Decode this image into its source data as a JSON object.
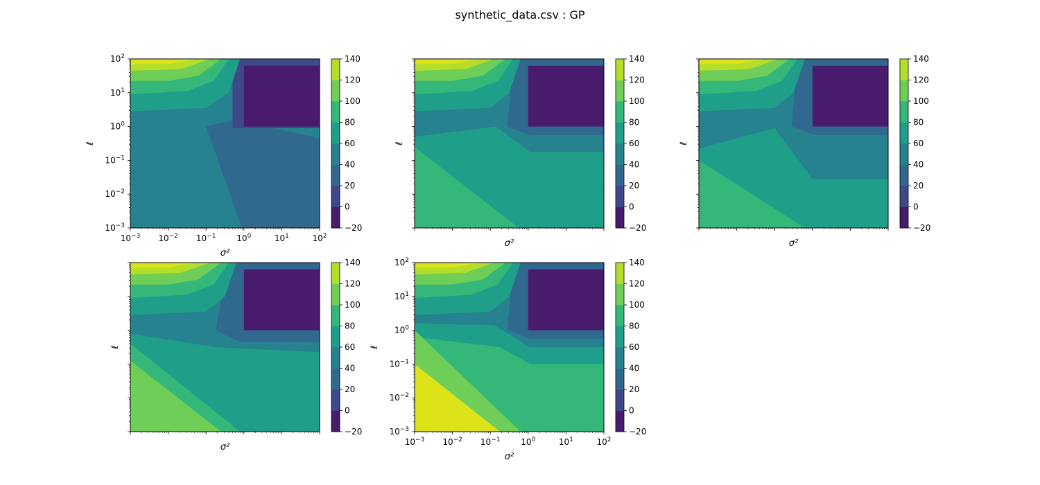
{
  "figure": {
    "title": "synthetic_data.csv : GP"
  },
  "chart_data": [
    {
      "type": "contourf",
      "panel": 1,
      "xlabel": "σ²",
      "ylabel": "ℓ",
      "xscale": "log",
      "yscale": "log",
      "xlim": [
        0.001,
        100
      ],
      "ylim": [
        0.001,
        100
      ],
      "x_ticklabels_shown": true,
      "y_ticklabels_shown": true,
      "levels": [
        -20,
        0,
        20,
        40,
        60,
        80,
        100,
        120,
        140
      ],
      "colorbar_ticks": [
        "−20",
        "0",
        "20",
        "40",
        "60",
        "80",
        "100",
        "120",
        "140"
      ],
      "regions": [
        {
          "level_band": [
            -20,
            0
          ],
          "description": "σ² ≥ 1, ℓ ≥ 1"
        },
        {
          "level_band": [
            120,
            140
          ],
          "description": "σ² small, ℓ near 100"
        }
      ]
    },
    {
      "type": "contourf",
      "panel": 2,
      "xlabel": "σ²",
      "ylabel": "ℓ",
      "xscale": "log",
      "yscale": "log",
      "xlim": [
        0.001,
        100
      ],
      "ylim": [
        0.001,
        100
      ],
      "x_ticklabels_shown": false,
      "y_ticklabels_shown": false,
      "levels": [
        -20,
        0,
        20,
        40,
        60,
        80,
        100,
        120,
        140
      ],
      "colorbar_ticks": [
        "−20",
        "0",
        "20",
        "40",
        "60",
        "80",
        "100",
        "120",
        "140"
      ]
    },
    {
      "type": "contourf",
      "panel": 3,
      "xlabel": "σ²",
      "ylabel": "ℓ",
      "xscale": "log",
      "yscale": "log",
      "xlim": [
        0.001,
        100
      ],
      "ylim": [
        0.001,
        100
      ],
      "x_ticklabels_shown": false,
      "y_ticklabels_shown": false,
      "levels": [
        -20,
        0,
        20,
        40,
        60,
        80,
        100,
        120,
        140
      ],
      "colorbar_ticks": [
        "−20",
        "0",
        "20",
        "40",
        "60",
        "80",
        "100",
        "120",
        "140"
      ]
    },
    {
      "type": "contourf",
      "panel": 4,
      "xlabel": "σ²",
      "ylabel": "ℓ",
      "xscale": "log",
      "yscale": "log",
      "xlim": [
        0.001,
        100
      ],
      "ylim": [
        0.001,
        100
      ],
      "x_ticklabels_shown": false,
      "y_ticklabels_shown": false,
      "levels": [
        -20,
        0,
        20,
        40,
        60,
        80,
        100,
        120,
        140
      ],
      "colorbar_ticks": [
        "−20",
        "0",
        "20",
        "40",
        "60",
        "80",
        "100",
        "120",
        "140"
      ]
    },
    {
      "type": "contourf",
      "panel": 5,
      "xlabel": "σ²",
      "ylabel": "ℓ",
      "xscale": "log",
      "yscale": "log",
      "xlim": [
        0.001,
        100
      ],
      "ylim": [
        0.001,
        100
      ],
      "x_ticklabels_shown": true,
      "y_ticklabels_shown": true,
      "levels": [
        -20,
        0,
        20,
        40,
        60,
        80,
        100,
        120,
        140
      ],
      "colorbar_ticks": [
        "−20",
        "0",
        "20",
        "40",
        "60",
        "80",
        "100",
        "120",
        "140"
      ]
    }
  ],
  "axis_ticks": {
    "labels": [
      "10",
      "10",
      "10",
      "10",
      "10",
      "10"
    ],
    "exponents": [
      "−3",
      "−2",
      "−1",
      "0",
      "1",
      "2"
    ]
  },
  "colors": {
    "band_-20_0": "#481b6d",
    "band_0_20": "#3e4989",
    "band_20_40": "#31688e",
    "band_40_60": "#26828e",
    "band_60_80": "#1f9e89",
    "band_80_100": "#35b779",
    "band_100_120": "#6ece58",
    "band_120_140": "#b5de2b",
    "band_140_plus": "#dce319"
  }
}
